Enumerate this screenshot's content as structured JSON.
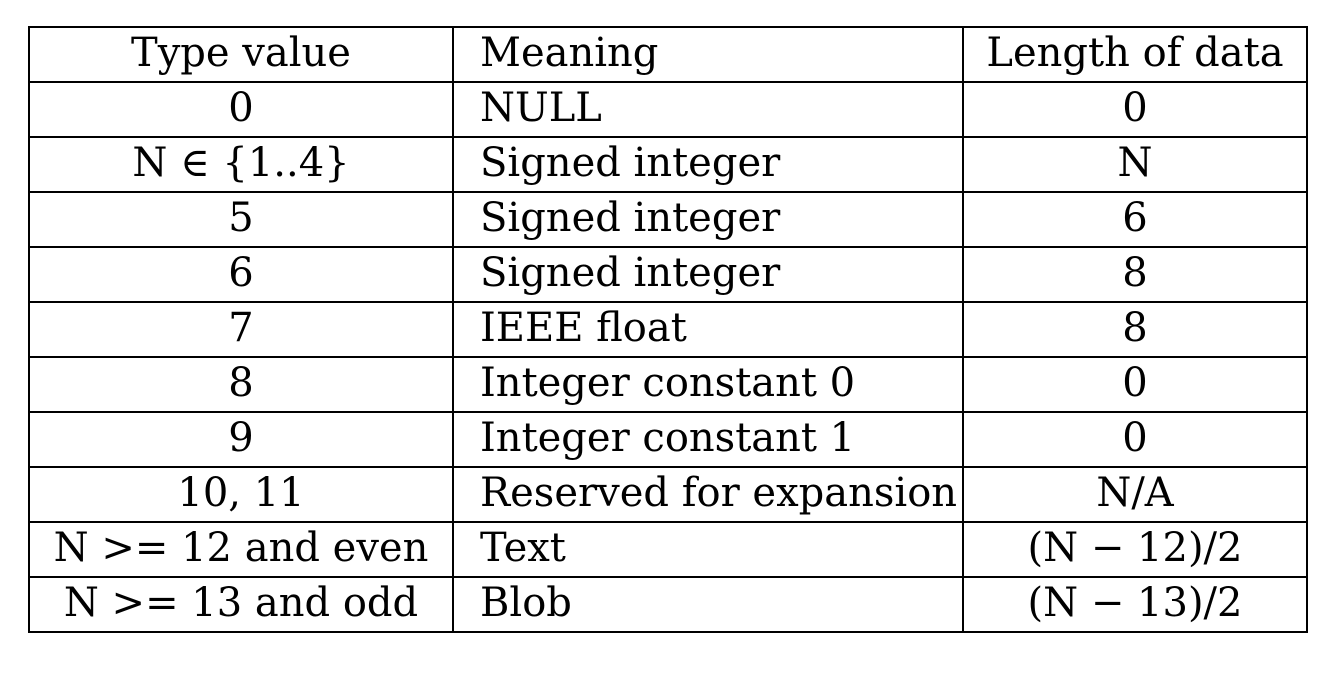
{
  "table": {
    "headers": {
      "type": "Type value",
      "meaning": "Meaning",
      "length": "Length of data"
    },
    "rows": [
      {
        "type": "0",
        "meaning": "NULL",
        "length": "0"
      },
      {
        "type": "N ∈ {1..4}",
        "meaning": "Signed integer",
        "length": "N"
      },
      {
        "type": "5",
        "meaning": "Signed integer",
        "length": "6"
      },
      {
        "type": "6",
        "meaning": "Signed integer",
        "length": "8"
      },
      {
        "type": "7",
        "meaning": "IEEE float",
        "length": "8"
      },
      {
        "type": "8",
        "meaning": "Integer constant 0",
        "length": "0"
      },
      {
        "type": "9",
        "meaning": "Integer constant 1",
        "length": "0"
      },
      {
        "type": "10, 11",
        "meaning": "Reserved for expansion",
        "length": "N/A"
      },
      {
        "type": "N >= 12 and even",
        "meaning": "Text",
        "length": "(N − 12)/2"
      },
      {
        "type": "N >= 13 and odd",
        "meaning": "Blob",
        "length": "(N − 13)/2"
      }
    ]
  }
}
